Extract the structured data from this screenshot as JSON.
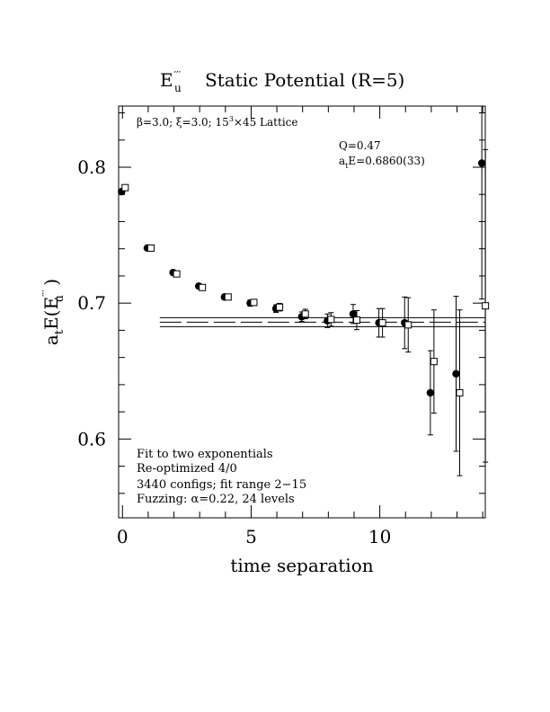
{
  "title": {
    "e_main": "E",
    "e_sup": "′′′",
    "e_sub": "u",
    "rest": "Static Potential (R=5)"
  },
  "info_line": {
    "beta": "β=3.0; ξ=3.0; 15",
    "cube": "3",
    "tail": "×45 Lattice"
  },
  "fit_result": {
    "q": "Q=0.47",
    "ae_a": "a",
    "ae_t": "t",
    "ae_rest": "E=0.6860(33)"
  },
  "notes": [
    "Fit to two exponentials",
    "Re-optimized 4/0",
    "3440 configs; fit range 2−15",
    "Fuzzing: α=0.22, 24 levels"
  ],
  "axes": {
    "xlabel": "time separation",
    "ylabel": {
      "a": "a",
      "t": "t",
      "mid": "E(E",
      "sup": "′′′",
      "sub": "u",
      "end": " )"
    }
  },
  "chart_data": {
    "type": "scatter",
    "xlim": [
      -0.15,
      14.1
    ],
    "ylim": [
      0.542,
      0.845
    ],
    "x_ticks": [
      0,
      5,
      10
    ],
    "x_tick_labels": [
      "0",
      "5",
      "10"
    ],
    "y_ticks": [
      0.6,
      0.7,
      0.8
    ],
    "y_tick_labels": [
      "0.6",
      "0.7",
      "0.8"
    ],
    "series": [
      {
        "marker": "filled-circle",
        "points": [
          {
            "x": 0,
            "y": 0.782,
            "err": 0.001
          },
          {
            "x": 1,
            "y": 0.7405,
            "err": 0.001
          },
          {
            "x": 2,
            "y": 0.7225,
            "err": 0.0012
          },
          {
            "x": 3,
            "y": 0.7125,
            "err": 0.0015
          },
          {
            "x": 4,
            "y": 0.7045,
            "err": 0.0018
          },
          {
            "x": 5,
            "y": 0.7,
            "err": 0.0022
          },
          {
            "x": 6,
            "y": 0.696,
            "err": 0.0028
          },
          {
            "x": 7,
            "y": 0.69,
            "err": 0.0035
          },
          {
            "x": 8,
            "y": 0.687,
            "err": 0.005
          },
          {
            "x": 9,
            "y": 0.692,
            "err": 0.007
          },
          {
            "x": 10,
            "y": 0.6855,
            "err": 0.0105
          },
          {
            "x": 11,
            "y": 0.6855,
            "err": 0.019
          },
          {
            "x": 12,
            "y": 0.634,
            "err": 0.031
          },
          {
            "x": 13,
            "y": 0.648,
            "err": 0.057
          },
          {
            "x": 14,
            "y": 0.803,
            "err": 0.1
          }
        ]
      },
      {
        "marker": "open-square",
        "points": [
          {
            "x": 0,
            "y": 0.785,
            "err": 0.001
          },
          {
            "x": 1,
            "y": 0.7405,
            "err": 0.001
          },
          {
            "x": 2,
            "y": 0.7215,
            "err": 0.0012
          },
          {
            "x": 3,
            "y": 0.7115,
            "err": 0.0015
          },
          {
            "x": 4,
            "y": 0.7045,
            "err": 0.0018
          },
          {
            "x": 5,
            "y": 0.7005,
            "err": 0.0022
          },
          {
            "x": 6,
            "y": 0.697,
            "err": 0.0028
          },
          {
            "x": 7,
            "y": 0.692,
            "err": 0.0035
          },
          {
            "x": 8,
            "y": 0.688,
            "err": 0.005
          },
          {
            "x": 9,
            "y": 0.6875,
            "err": 0.007
          },
          {
            "x": 10,
            "y": 0.6855,
            "err": 0.0105
          },
          {
            "x": 11,
            "y": 0.684,
            "err": 0.02
          },
          {
            "x": 12,
            "y": 0.657,
            "err": 0.038
          },
          {
            "x": 13,
            "y": 0.634,
            "err": 0.061
          },
          {
            "x": 14,
            "y": 0.698,
            "err": 0.115
          }
        ]
      }
    ],
    "fit": {
      "value": 0.686,
      "error": 0.0033,
      "x_range": [
        2,
        14.1
      ]
    }
  }
}
